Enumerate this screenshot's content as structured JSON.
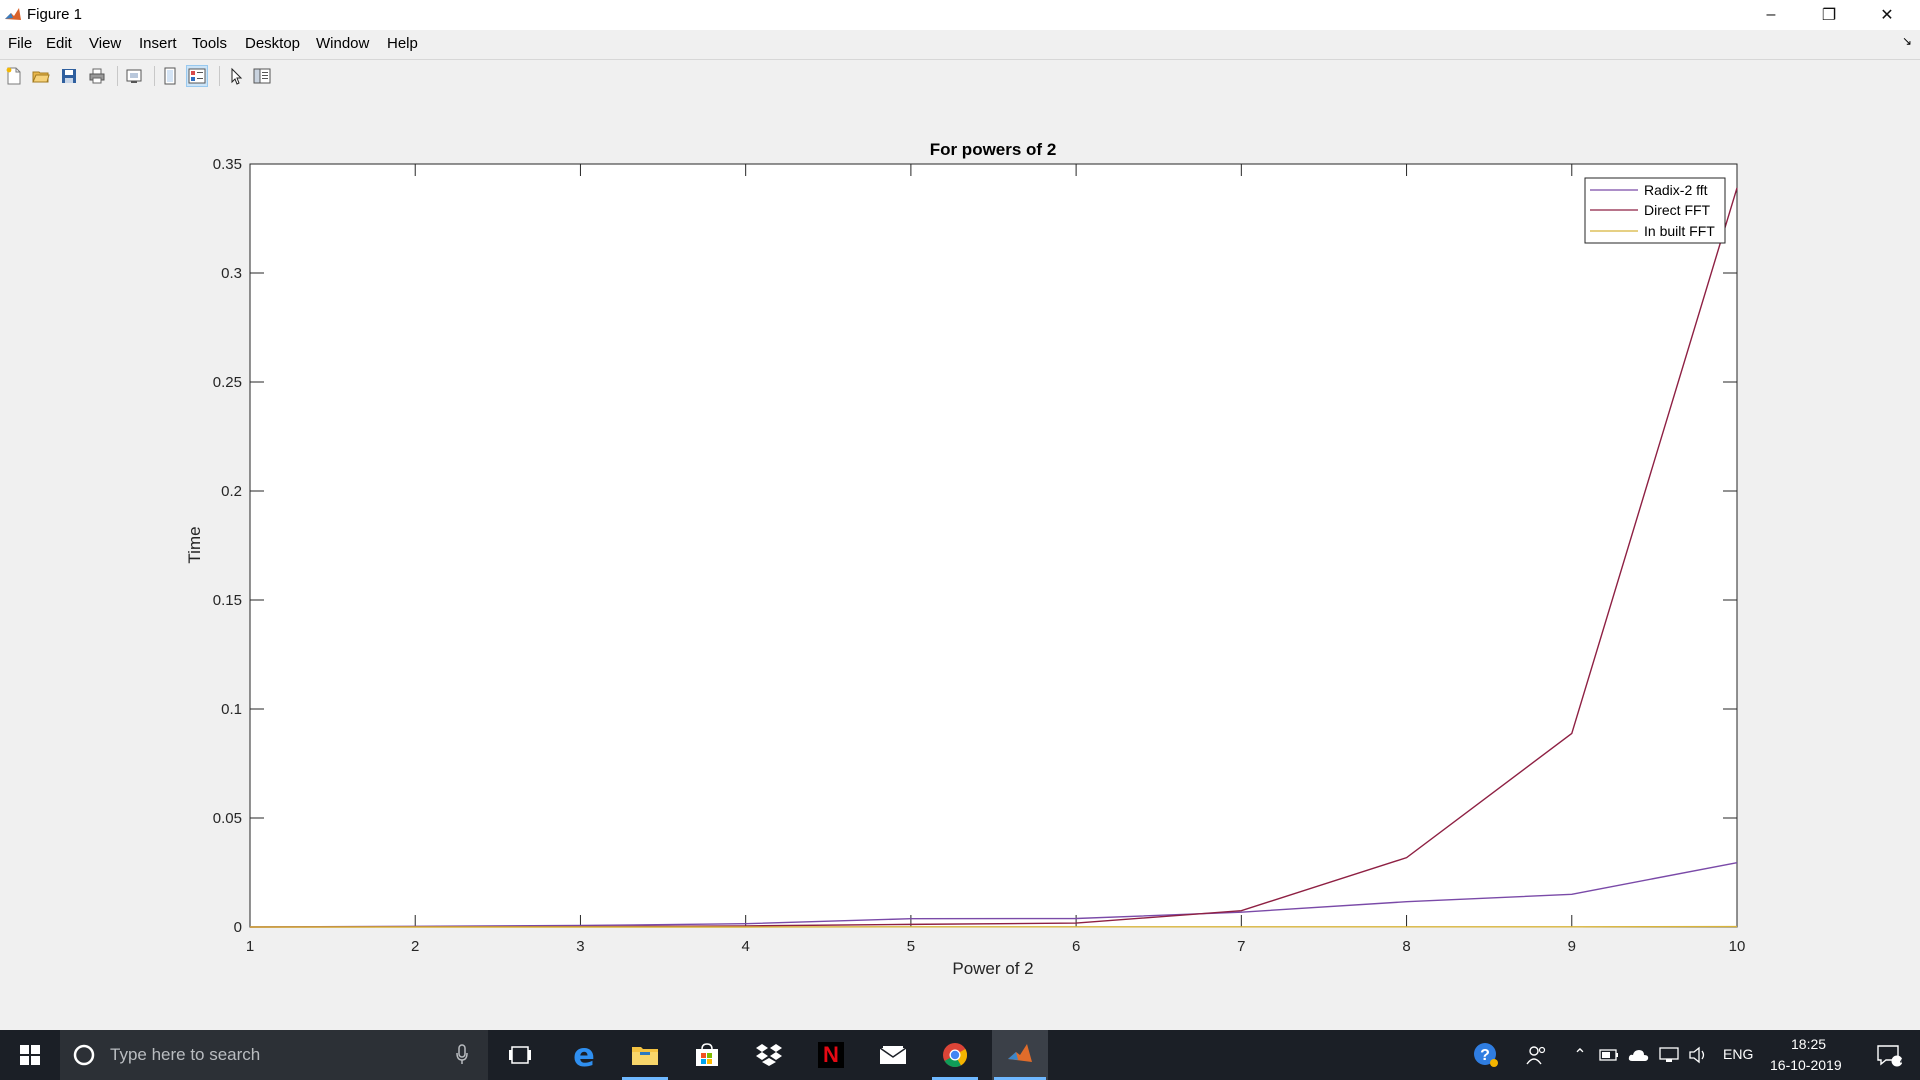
{
  "window": {
    "title": "Figure 1",
    "controls": {
      "minimize": "–",
      "restore": "❐",
      "close": "✕"
    }
  },
  "menu": [
    "File",
    "Edit",
    "View",
    "Insert",
    "Tools",
    "Desktop",
    "Window",
    "Help"
  ],
  "toolbar": {
    "icons": [
      "new-figure-icon",
      "open-file-icon",
      "save-icon",
      "print-icon",
      "link-plot-icon",
      "hide-plot-tools-icon",
      "show-plot-tools-icon",
      "edit-plot-arrow-icon",
      "plot-browser-icon"
    ]
  },
  "chart_data": {
    "type": "line",
    "title": "For powers of 2",
    "xlabel": "Power of 2",
    "ylabel": "Time",
    "xlim": [
      1,
      10
    ],
    "ylim": [
      0,
      0.35
    ],
    "xticks": [
      "1",
      "2",
      "3",
      "4",
      "5",
      "6",
      "7",
      "8",
      "9",
      "10"
    ],
    "yticks": [
      "0",
      "0.05",
      "0.1",
      "0.15",
      "0.2",
      "0.25",
      "0.3",
      "0.35"
    ],
    "x": [
      1,
      2,
      3,
      4,
      5,
      6,
      7,
      8,
      9,
      10
    ],
    "legend_position": "top-right",
    "grid": false,
    "series": [
      {
        "name": "Radix-2 fft",
        "color": "#7a4aa8",
        "values": [
          0.0,
          0.0003,
          0.0007,
          0.0015,
          0.0038,
          0.0039,
          0.0068,
          0.0116,
          0.015,
          0.0295
        ]
      },
      {
        "name": "Direct FFT",
        "color": "#8e2043",
        "values": [
          0.0,
          0.0001,
          0.0002,
          0.0005,
          0.0012,
          0.0018,
          0.0075,
          0.0318,
          0.0888,
          0.339
        ]
      },
      {
        "name": "In built FFT",
        "color": "#d8b43b",
        "values": [
          0.0,
          0.0,
          0.0,
          0.0,
          0.0001,
          0.0001,
          0.0001,
          0.0001,
          0.0001,
          0.0002
        ]
      }
    ]
  },
  "taskbar": {
    "search_placeholder": "Type here to search",
    "apps": [
      "windows-start-icon",
      "task-view-icon",
      "edge-icon",
      "file-explorer-icon",
      "store-icon",
      "dropbox-icon",
      "netflix-icon",
      "mail-icon",
      "chrome-icon",
      "matlab-icon"
    ],
    "language": "ENG",
    "time": "18:25",
    "date": "16-10-2019",
    "notification_count": "4"
  }
}
